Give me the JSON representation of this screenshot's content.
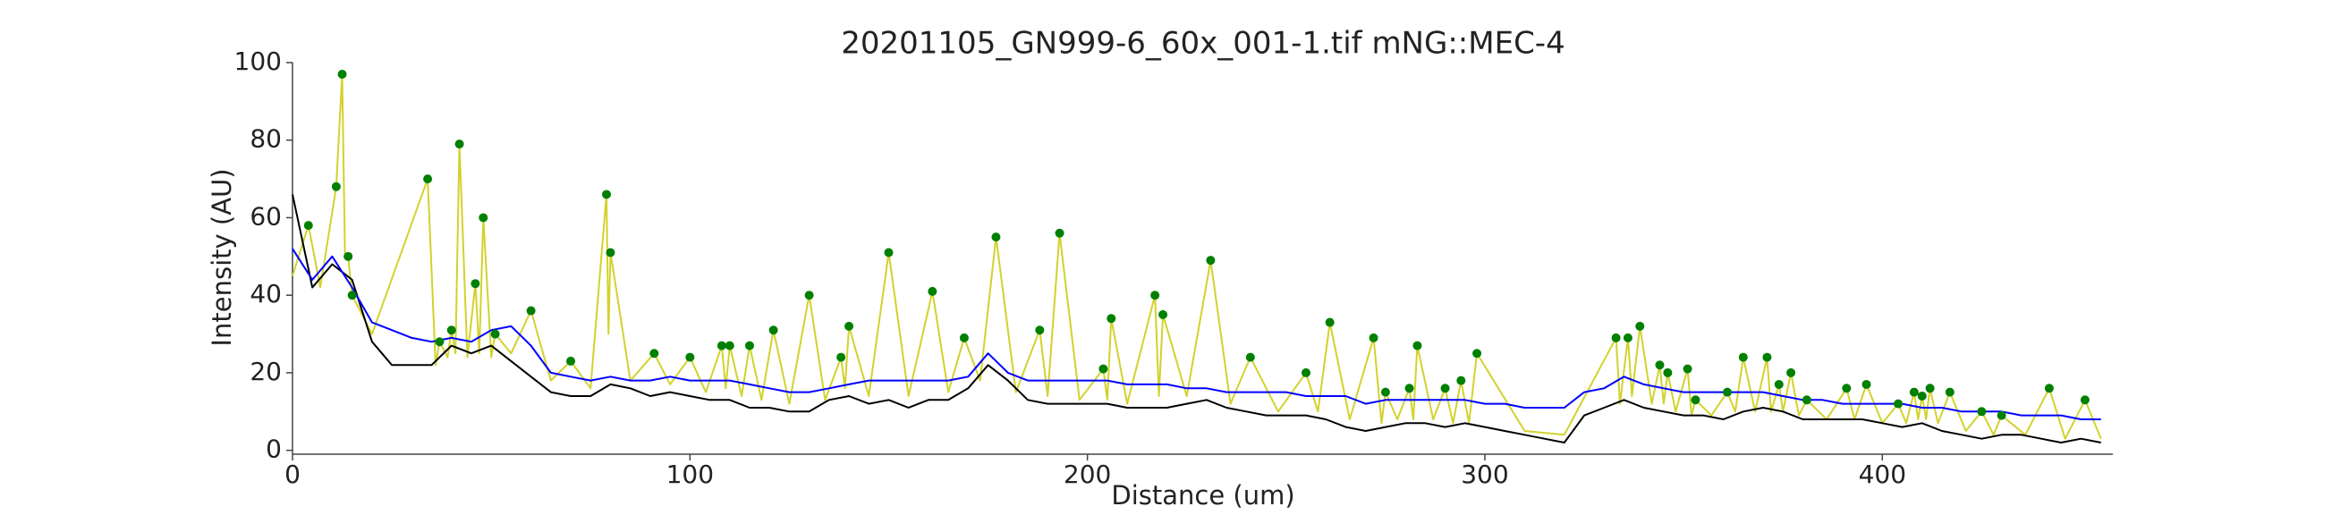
{
  "chart_data": {
    "type": "line",
    "title": "20201105_GN999-6_60x_001-1.tif mNG::MEC-4",
    "x_label": "Distance (um)",
    "y_label": "Intensity (AU)",
    "xlim": [
      0,
      458
    ],
    "ylim": [
      -1,
      100
    ],
    "xticks": [
      0,
      100,
      200,
      300,
      400
    ],
    "yticks": [
      0,
      20,
      40,
      60,
      80,
      100
    ],
    "grid": false,
    "series": [
      {
        "kind": "line",
        "color": "#d2d22c",
        "width": 2,
        "x": [
          0,
          4,
          7,
          11,
          12.5,
          13.2,
          14,
          15,
          20,
          34,
          36,
          37,
          39,
          40,
          41,
          42,
          44,
          46,
          47,
          48,
          50,
          51,
          55,
          60,
          65,
          70,
          75,
          79,
          79.5,
          80,
          85,
          91,
          95,
          100,
          104,
          108,
          109,
          110,
          113,
          115,
          118,
          121,
          125,
          130,
          134,
          138,
          139,
          140,
          145,
          150,
          155,
          161,
          165,
          169,
          173,
          177,
          182,
          188,
          190,
          193,
          198,
          204,
          205,
          206,
          210,
          217,
          218,
          219,
          225,
          231,
          236,
          241,
          248,
          255,
          258,
          261,
          266,
          272,
          274,
          275,
          278,
          281,
          282,
          283,
          287,
          290,
          292,
          294,
          296,
          298,
          310,
          320,
          333,
          334,
          336,
          337,
          339,
          342,
          344,
          345,
          346,
          348,
          351,
          352,
          353,
          357,
          361,
          363,
          365,
          368,
          371,
          372,
          374,
          375,
          377,
          379,
          381,
          386,
          391,
          393,
          396,
          400,
          404,
          406,
          408,
          409,
          410,
          411,
          412,
          414,
          417,
          421,
          425,
          428,
          430,
          436,
          442,
          446,
          451,
          455
        ],
        "values": [
          45,
          58,
          42,
          68,
          97,
          50,
          50,
          40,
          30,
          70,
          22,
          28,
          24,
          31,
          25,
          79,
          24,
          43,
          25,
          60,
          24,
          30,
          25,
          36,
          18,
          23,
          16,
          66,
          30,
          51,
          18,
          25,
          17,
          24,
          15,
          27,
          16,
          27,
          14,
          27,
          13,
          31,
          12,
          40,
          13,
          24,
          16,
          32,
          14,
          51,
          14,
          41,
          15,
          29,
          18,
          55,
          15,
          31,
          14,
          56,
          13,
          21,
          13,
          34,
          12,
          40,
          14,
          35,
          14,
          49,
          12,
          24,
          10,
          20,
          10,
          33,
          8,
          29,
          7,
          15,
          8,
          16,
          8,
          27,
          8,
          16,
          7,
          18,
          7,
          25,
          5,
          4,
          29,
          12,
          29,
          14,
          32,
          12,
          22,
          12,
          20,
          10,
          21,
          9,
          13,
          9,
          15,
          10,
          24,
          10,
          24,
          10,
          17,
          10,
          20,
          9,
          13,
          8,
          16,
          8,
          17,
          7,
          12,
          7,
          15,
          8,
          14,
          8,
          16,
          7,
          15,
          5,
          10,
          4,
          9,
          4,
          16,
          3,
          13,
          3
        ]
      },
      {
        "kind": "line",
        "color": "#000000",
        "width": 2,
        "x": [
          0,
          5,
          10,
          15,
          20,
          25,
          30,
          35,
          40,
          45,
          50,
          55,
          60,
          65,
          70,
          75,
          80,
          85,
          90,
          95,
          100,
          105,
          110,
          115,
          120,
          125,
          130,
          135,
          140,
          145,
          150,
          155,
          160,
          165,
          170,
          175,
          180,
          185,
          190,
          195,
          200,
          205,
          210,
          215,
          220,
          225,
          230,
          235,
          240,
          245,
          250,
          255,
          260,
          265,
          270,
          275,
          280,
          285,
          290,
          295,
          300,
          305,
          310,
          315,
          320,
          325,
          330,
          335,
          340,
          345,
          350,
          355,
          360,
          365,
          370,
          375,
          380,
          385,
          390,
          395,
          400,
          405,
          410,
          415,
          420,
          425,
          430,
          435,
          440,
          445,
          450,
          455
        ],
        "values": [
          66,
          42,
          48,
          44,
          28,
          22,
          22,
          22,
          27,
          25,
          27,
          23,
          19,
          15,
          14,
          14,
          17,
          16,
          14,
          15,
          14,
          13,
          13,
          11,
          11,
          10,
          10,
          13,
          14,
          12,
          13,
          11,
          13,
          13,
          16,
          22,
          18,
          13,
          12,
          12,
          12,
          12,
          11,
          11,
          11,
          12,
          13,
          11,
          10,
          9,
          9,
          9,
          8,
          6,
          5,
          6,
          7,
          7,
          6,
          7,
          6,
          5,
          4,
          3,
          2,
          9,
          11,
          13,
          11,
          10,
          9,
          9,
          8,
          10,
          11,
          10,
          8,
          8,
          8,
          8,
          7,
          6,
          7,
          5,
          4,
          3,
          4,
          4,
          3,
          2,
          3,
          2
        ]
      },
      {
        "kind": "line",
        "color": "#0000ff",
        "width": 2,
        "x": [
          0,
          5,
          10,
          15,
          20,
          25,
          30,
          35,
          40,
          45,
          50,
          55,
          60,
          65,
          70,
          75,
          80,
          85,
          90,
          95,
          100,
          105,
          110,
          115,
          120,
          125,
          130,
          135,
          140,
          145,
          150,
          155,
          160,
          165,
          170,
          175,
          180,
          185,
          190,
          195,
          200,
          205,
          210,
          215,
          220,
          225,
          230,
          235,
          240,
          245,
          250,
          255,
          260,
          265,
          270,
          275,
          280,
          285,
          290,
          295,
          300,
          305,
          310,
          315,
          320,
          325,
          330,
          335,
          340,
          345,
          350,
          355,
          360,
          365,
          370,
          375,
          380,
          385,
          390,
          395,
          400,
          405,
          410,
          415,
          420,
          425,
          430,
          435,
          440,
          445,
          450,
          455
        ],
        "values": [
          52,
          44,
          50,
          42,
          33,
          31,
          29,
          28,
          29,
          28,
          31,
          32,
          27,
          20,
          19,
          18,
          19,
          18,
          18,
          19,
          18,
          18,
          18,
          17,
          16,
          15,
          15,
          16,
          17,
          18,
          18,
          18,
          18,
          18,
          19,
          25,
          20,
          18,
          18,
          18,
          18,
          18,
          17,
          17,
          17,
          16,
          16,
          15,
          15,
          15,
          15,
          14,
          14,
          14,
          12,
          13,
          13,
          13,
          13,
          13,
          12,
          12,
          11,
          11,
          11,
          15,
          16,
          19,
          17,
          16,
          15,
          15,
          15,
          15,
          15,
          14,
          13,
          13,
          12,
          12,
          12,
          12,
          11,
          11,
          10,
          10,
          10,
          9,
          9,
          9,
          8,
          8
        ]
      },
      {
        "kind": "scatter",
        "color": "#008000",
        "x": [
          4,
          11,
          12.5,
          14,
          15,
          34,
          37,
          40,
          42,
          46,
          48,
          51,
          60,
          70,
          79,
          80,
          91,
          100,
          108,
          110,
          115,
          121,
          130,
          138,
          140,
          150,
          161,
          169,
          177,
          188,
          193,
          204,
          206,
          217,
          219,
          231,
          241,
          255,
          261,
          272,
          275,
          281,
          283,
          290,
          294,
          298,
          333,
          336,
          339,
          344,
          346,
          351,
          353,
          361,
          365,
          371,
          374,
          377,
          381,
          391,
          396,
          404,
          408,
          410,
          412,
          417,
          425,
          430,
          442,
          451
        ],
        "values": [
          58,
          68,
          97,
          50,
          40,
          70,
          28,
          31,
          79,
          43,
          60,
          30,
          36,
          23,
          66,
          51,
          25,
          24,
          27,
          27,
          27,
          31,
          40,
          24,
          32,
          51,
          41,
          29,
          55,
          31,
          56,
          21,
          34,
          40,
          35,
          49,
          24,
          20,
          33,
          29,
          15,
          16,
          27,
          16,
          18,
          25,
          29,
          29,
          32,
          22,
          20,
          21,
          13,
          15,
          24,
          24,
          17,
          20,
          13,
          16,
          17,
          12,
          15,
          14,
          16,
          15,
          10,
          9,
          16,
          13
        ]
      }
    ]
  }
}
